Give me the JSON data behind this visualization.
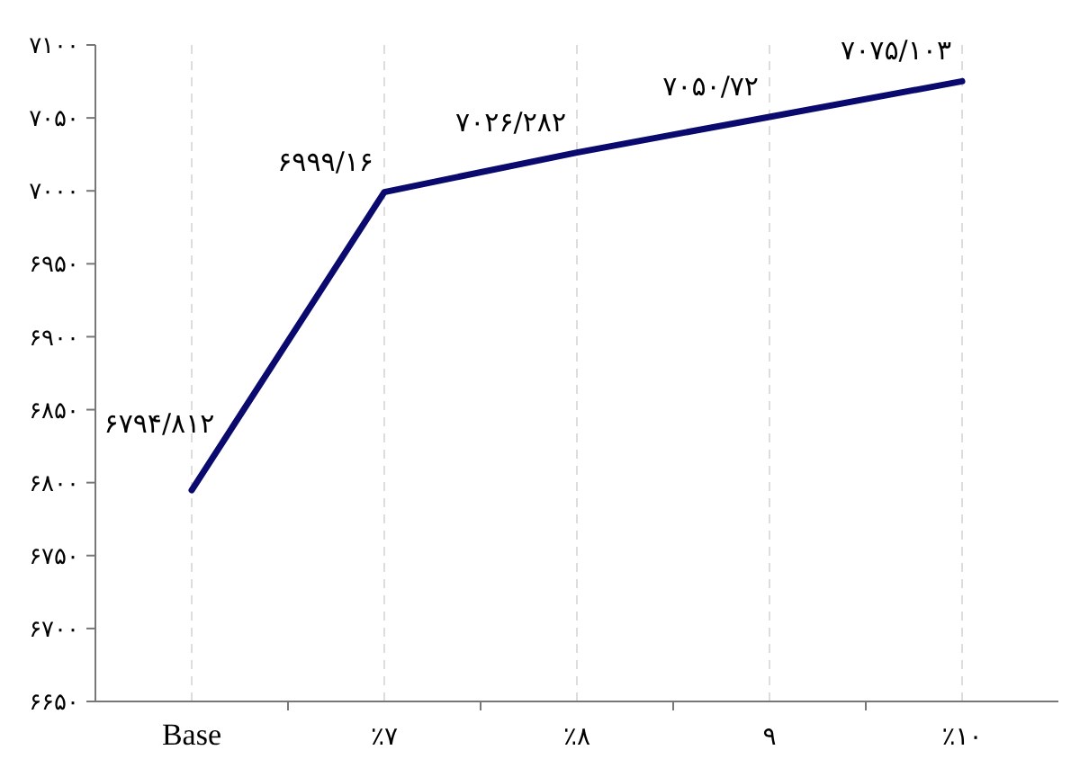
{
  "chart_data": {
    "type": "line",
    "categories": [
      "Base",
      "٪۷",
      "٪۸",
      "۹",
      "٪۱۰"
    ],
    "series": [
      {
        "color": "#0a0a6e",
        "values": [
          6794.812,
          6999.16,
          7026.282,
          7050.72,
          7075.103
        ],
        "value_labels": [
          "۶۷۹۴/۸۱۲",
          "۶۹۹۹/۱۶",
          "۷۰۲۶/۲۸۲",
          "۷۰۵۰/۷۲",
          "۷۰۷۵/۱۰۳"
        ]
      }
    ],
    "ylim": [
      6650,
      7100
    ],
    "yticks": [
      {
        "value": 6650,
        "label": "۶۶۵۰"
      },
      {
        "value": 6700,
        "label": "۶۷۰۰"
      },
      {
        "value": 6750,
        "label": "۶۷۵۰"
      },
      {
        "value": 6800,
        "label": "۶۸۰۰"
      },
      {
        "value": 6850,
        "label": "۶۸۵۰"
      },
      {
        "value": 6900,
        "label": "۶۹۰۰"
      },
      {
        "value": 6950,
        "label": "۶۹۵۰"
      },
      {
        "value": 7000,
        "label": "۷۰۰۰"
      },
      {
        "value": 7050,
        "label": "۷۰۵۰"
      },
      {
        "value": 7100,
        "label": "۷۱۰۰"
      }
    ],
    "grid": "x",
    "marker": "none",
    "line_style": "solid"
  }
}
